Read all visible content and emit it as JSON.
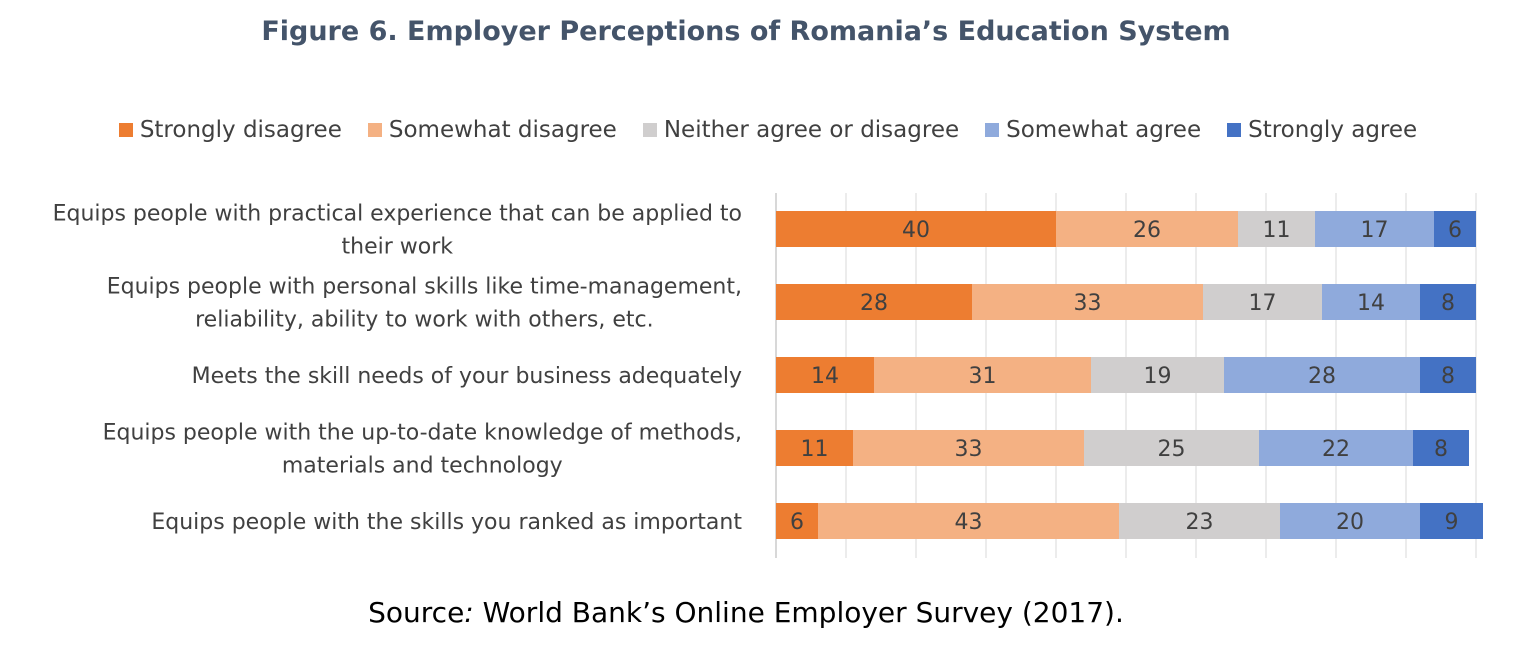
{
  "chart_data": {
    "type": "bar",
    "orientation": "horizontal",
    "stacked": true,
    "title": "Figure 6. Employer Perceptions of Romania’s Education System",
    "legend_position": "top",
    "xlim": [
      0,
      100
    ],
    "grid": true,
    "categories": [
      [
        "Equips people with practical experience that can be applied to",
        "their work"
      ],
      [
        "Equips people with personal skills like time-management,",
        "reliability, ability to work with others, etc."
      ],
      [
        "Meets the skill needs of your business adequately"
      ],
      [
        "Equips people with the up-to-date knowledge of methods,",
        "materials and technology"
      ],
      [
        "Equips people with the skills you ranked as important"
      ]
    ],
    "series": [
      {
        "name": "Strongly disagree",
        "color": "#ed7d31",
        "values": [
          40,
          28,
          14,
          11,
          6
        ]
      },
      {
        "name": "Somewhat disagree",
        "color": "#f4b183",
        "values": [
          26,
          33,
          31,
          33,
          43
        ]
      },
      {
        "name": "Neither agree or disagree",
        "color": "#d0cece",
        "values": [
          11,
          17,
          19,
          25,
          23
        ]
      },
      {
        "name": "Somewhat agree",
        "color": "#8faadc",
        "values": [
          17,
          14,
          28,
          22,
          20
        ]
      },
      {
        "name": "Strongly agree",
        "color": "#4472c4",
        "values": [
          6,
          8,
          8,
          8,
          9
        ]
      }
    ]
  },
  "source": {
    "label": "Source",
    "separator": ":",
    "text": " World Bank’s Online Employer Survey (2017)."
  }
}
